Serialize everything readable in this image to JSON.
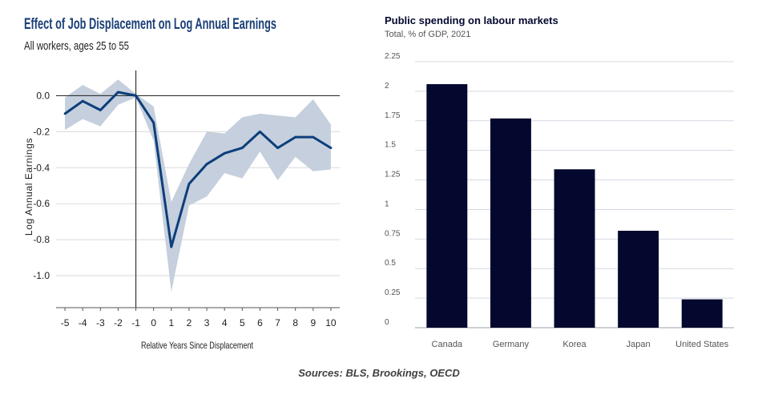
{
  "colors": {
    "line": "#0c3e7a",
    "band": "#c5cfdd",
    "bar": "#04082e",
    "axis": "#444444",
    "grid": "#d5d9e3",
    "zero_line": "#333333",
    "title_blue": "#1a3f77"
  },
  "left_chart_titles": {
    "title": "Effect of Job Displacement on Log Annual Earnings",
    "subtitle": "All workers, ages 25 to 55"
  },
  "right_chart_titles": {
    "title": "Public spending on labour markets",
    "subtitle": "Total, % of GDP, 2021"
  },
  "sources": "Sources: BLS, Brookings, OECD",
  "chart_data": [
    {
      "type": "line",
      "title": "Effect of Job Displacement on Log Annual Earnings",
      "subtitle": "All workers, ages 25 to 55",
      "xlabel": "Relative Years Since Displacement",
      "ylabel": "Log Annual Earnings",
      "x": [
        -5,
        -4,
        -3,
        -2,
        -1,
        0,
        1,
        2,
        3,
        4,
        5,
        6,
        7,
        8,
        9,
        10
      ],
      "x_tick_labels": [
        "-5",
        "-4",
        "-3",
        "-2",
        "-1",
        "0",
        "1",
        "2",
        "3",
        "4",
        "5",
        "6",
        "7",
        "8",
        "9",
        "10"
      ],
      "y": [
        -0.1,
        -0.03,
        -0.08,
        0.02,
        0.0,
        -0.15,
        -0.84,
        -0.49,
        -0.38,
        -0.32,
        -0.29,
        -0.2,
        -0.29,
        -0.23,
        -0.23,
        -0.29
      ],
      "ci_upper": [
        -0.01,
        0.06,
        0.01,
        0.09,
        0.01,
        -0.06,
        -0.59,
        -0.38,
        -0.2,
        -0.21,
        -0.12,
        -0.1,
        -0.11,
        -0.12,
        -0.02,
        -0.16
      ],
      "ci_lower": [
        -0.19,
        -0.13,
        -0.17,
        -0.05,
        -0.01,
        -0.25,
        -1.09,
        -0.61,
        -0.56,
        -0.43,
        -0.46,
        -0.31,
        -0.47,
        -0.34,
        -0.42,
        -0.41
      ],
      "y_ticks": [
        0.0,
        -0.2,
        -0.4,
        -0.6,
        -0.8,
        -1.0
      ],
      "y_tick_labels": [
        "0.0",
        "-0.2",
        "-0.4",
        "-0.6",
        "-0.8",
        "-1.0"
      ],
      "ylim": [
        -1.16,
        0.14
      ],
      "xlim": [
        -5.5,
        10.5
      ],
      "vline_x": -1,
      "hline_y": 0.0,
      "grid": true
    },
    {
      "type": "bar",
      "title": "Public spending on labour markets",
      "subtitle": "Total, % of GDP, 2021",
      "categories": [
        "Canada",
        "Germany",
        "Korea",
        "Japan",
        "United States"
      ],
      "values": [
        2.06,
        1.77,
        1.34,
        0.82,
        0.24
      ],
      "y_ticks": [
        0,
        0.25,
        0.5,
        0.75,
        1,
        1.25,
        1.5,
        1.75,
        2,
        2.25
      ],
      "y_tick_labels": [
        "0",
        "0.25",
        "0.5",
        "0.75",
        "1",
        "1.25",
        "1.5",
        "1.75",
        "2",
        "2.25"
      ],
      "ylim": [
        0,
        2.25
      ],
      "grid": true,
      "xlabel": "",
      "ylabel": ""
    }
  ]
}
